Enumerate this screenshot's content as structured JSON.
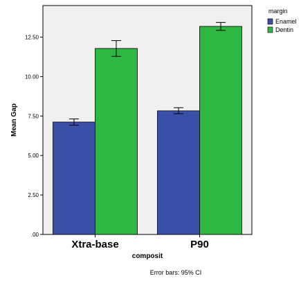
{
  "chart_data": {
    "type": "bar",
    "title": "",
    "xlabel": "composit",
    "ylabel": "Mean Gap",
    "categories": [
      "Xtra-base",
      "P90"
    ],
    "series": [
      {
        "name": "Enamel",
        "color": "#3a4fa8",
        "values": [
          7.12,
          7.83
        ],
        "ci_low": [
          6.92,
          7.65
        ],
        "ci_high": [
          7.32,
          8.03
        ]
      },
      {
        "name": "Dentin",
        "color": "#2fb744",
        "values": [
          11.78,
          13.18
        ],
        "ci_low": [
          11.28,
          12.93
        ],
        "ci_high": [
          12.28,
          13.43
        ]
      }
    ],
    "ylim": [
      0,
      14.5
    ],
    "yticks": [
      ".00",
      "2.50",
      "5.00",
      "7.50",
      "10.00",
      "12.50"
    ],
    "legend": {
      "title": "margin",
      "position": "top-right"
    },
    "grid": false,
    "background": "#f0f0f0",
    "note": "Error bars: 95% CI"
  }
}
